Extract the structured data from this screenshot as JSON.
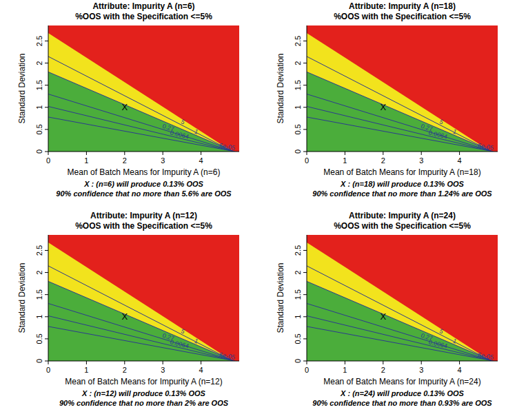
{
  "chart_data": [
    {
      "type": "contour",
      "title": "Attribute: Impurity A (n=6)",
      "subtitle": "%OOS with the Specification <=5%",
      "x_label": "Mean of Batch Means for Impurity A (n=6)",
      "y_label": "Standard Deviation",
      "xlim": [
        0,
        5
      ],
      "ylim": [
        0,
        2.85
      ],
      "xticks": [
        0,
        1,
        2,
        3,
        4
      ],
      "yticks": [
        0,
        0.5,
        1,
        1.5,
        2,
        2.5
      ],
      "regions": [
        {
          "color": "#e3211c"
        },
        {
          "color": "#f2e31d",
          "x": [
            0,
            4.82,
            0
          ],
          "y": [
            2.68,
            0,
            0
          ]
        },
        {
          "color": "#4bad3b",
          "x": [
            0,
            4.86,
            0
          ],
          "y": [
            1.8,
            0,
            0
          ]
        }
      ],
      "contours": [
        {
          "label": "5",
          "x": [
            0,
            4.84
          ],
          "y": [
            2.15,
            0
          ]
        },
        {
          "label": "1",
          "x": [
            0,
            4.86
          ],
          "y": [
            1.8,
            0
          ]
        },
        {
          "label": "0.27",
          "x": [
            0,
            4.87
          ],
          "y": [
            1.3,
            0
          ]
        },
        {
          "label": "0.0064",
          "x": [
            0,
            4.88
          ],
          "y": [
            1.02,
            0
          ]
        },
        {
          "label": "6e-05",
          "x": [
            0,
            4.89
          ],
          "y": [
            0.78,
            0
          ]
        }
      ],
      "color": "#2b3a8f",
      "point": {
        "label": "X",
        "x": 2,
        "y": 1
      },
      "annotations": [
        "X : (n=6) will produce 0.13% OOS",
        "90% confidence that no more than 5.6% are OOS"
      ]
    },
    {
      "type": "contour",
      "title": "Attribute: Impurity A (n=18)",
      "subtitle": "%OOS with the Specification <=5%",
      "x_label": "Mean of Batch Means for Impurity A (n=18)",
      "y_label": "Standard Deviation",
      "xlim": [
        0,
        5
      ],
      "ylim": [
        0,
        2.85
      ],
      "xticks": [
        0,
        1,
        2,
        3,
        4
      ],
      "yticks": [
        0,
        0.5,
        1,
        1.5,
        2,
        2.5
      ],
      "regions": [
        {
          "color": "#e3211c"
        },
        {
          "color": "#f2e31d",
          "x": [
            0,
            4.82,
            0
          ],
          "y": [
            2.68,
            0,
            0
          ]
        },
        {
          "color": "#4bad3b",
          "x": [
            0,
            4.86,
            0
          ],
          "y": [
            1.8,
            0,
            0
          ]
        }
      ],
      "contours": [
        {
          "label": "5",
          "x": [
            0,
            4.84
          ],
          "y": [
            2.15,
            0
          ]
        },
        {
          "label": "1",
          "x": [
            0,
            4.86
          ],
          "y": [
            1.8,
            0
          ]
        },
        {
          "label": "0.27",
          "x": [
            0,
            4.87
          ],
          "y": [
            1.3,
            0
          ]
        },
        {
          "label": "0.0064",
          "x": [
            0,
            4.88
          ],
          "y": [
            1.02,
            0
          ]
        },
        {
          "label": "6e-05",
          "x": [
            0,
            4.89
          ],
          "y": [
            0.78,
            0
          ]
        }
      ],
      "color": "#2b3a8f",
      "point": {
        "label": "X",
        "x": 2,
        "y": 1
      },
      "annotations": [
        "X : (n=18) will produce 0.13% OOS",
        "90% confidence that no more than 1.24% are OOS"
      ]
    },
    {
      "type": "contour",
      "title": "Attribute: Impurity A (n=12)",
      "subtitle": "%OOS with the Specification <=5%",
      "x_label": "Mean of Batch Means for Impurity A (n=12)",
      "y_label": "Standard Deviation",
      "xlim": [
        0,
        5
      ],
      "ylim": [
        0,
        2.85
      ],
      "xticks": [
        0,
        1,
        2,
        3,
        4
      ],
      "yticks": [
        0,
        0.5,
        1,
        1.5,
        2,
        2.5
      ],
      "regions": [
        {
          "color": "#e3211c"
        },
        {
          "color": "#f2e31d",
          "x": [
            0,
            4.82,
            0
          ],
          "y": [
            2.68,
            0,
            0
          ]
        },
        {
          "color": "#4bad3b",
          "x": [
            0,
            4.86,
            0
          ],
          "y": [
            1.8,
            0,
            0
          ]
        }
      ],
      "contours": [
        {
          "label": "5",
          "x": [
            0,
            4.84
          ],
          "y": [
            2.15,
            0
          ]
        },
        {
          "label": "1",
          "x": [
            0,
            4.86
          ],
          "y": [
            1.8,
            0
          ]
        },
        {
          "label": "0.27",
          "x": [
            0,
            4.87
          ],
          "y": [
            1.3,
            0
          ]
        },
        {
          "label": "0.0064",
          "x": [
            0,
            4.88
          ],
          "y": [
            1.02,
            0
          ]
        },
        {
          "label": "6e-05",
          "x": [
            0,
            4.89
          ],
          "y": [
            0.78,
            0
          ]
        }
      ],
      "color": "#2b3a8f",
      "point": {
        "label": "X",
        "x": 2,
        "y": 1
      },
      "annotations": [
        "X : (n=12) will produce 0.13% OOS",
        "90% confidence that no more than 2% are OOS"
      ]
    },
    {
      "type": "contour",
      "title": "Attribute: Impurity A (n=24)",
      "subtitle": "%OOS with the Specification <=5%",
      "x_label": "Mean of Batch Means for Impurity A (n=24)",
      "y_label": "Standard Deviation",
      "xlim": [
        0,
        5
      ],
      "ylim": [
        0,
        2.85
      ],
      "xticks": [
        0,
        1,
        2,
        3,
        4
      ],
      "yticks": [
        0,
        0.5,
        1,
        1.5,
        2,
        2.5
      ],
      "regions": [
        {
          "color": "#e3211c"
        },
        {
          "color": "#f2e31d",
          "x": [
            0,
            4.82,
            0
          ],
          "y": [
            2.68,
            0,
            0
          ]
        },
        {
          "color": "#4bad3b",
          "x": [
            0,
            4.86,
            0
          ],
          "y": [
            1.8,
            0,
            0
          ]
        }
      ],
      "contours": [
        {
          "label": "5",
          "x": [
            0,
            4.84
          ],
          "y": [
            2.15,
            0
          ]
        },
        {
          "label": "1",
          "x": [
            0,
            4.86
          ],
          "y": [
            1.8,
            0
          ]
        },
        {
          "label": "0.27",
          "x": [
            0,
            4.87
          ],
          "y": [
            1.3,
            0
          ]
        },
        {
          "label": "0.0064",
          "x": [
            0,
            4.88
          ],
          "y": [
            1.02,
            0
          ]
        },
        {
          "label": "6e-05",
          "x": [
            0,
            4.89
          ],
          "y": [
            0.78,
            0
          ]
        }
      ],
      "color": "#2b3a8f",
      "point": {
        "label": "X",
        "x": 2,
        "y": 1
      },
      "annotations": [
        "X : (n=24) will produce 0.13% OOS",
        "90% confidence that no more than 0.93% are OOS"
      ]
    }
  ]
}
